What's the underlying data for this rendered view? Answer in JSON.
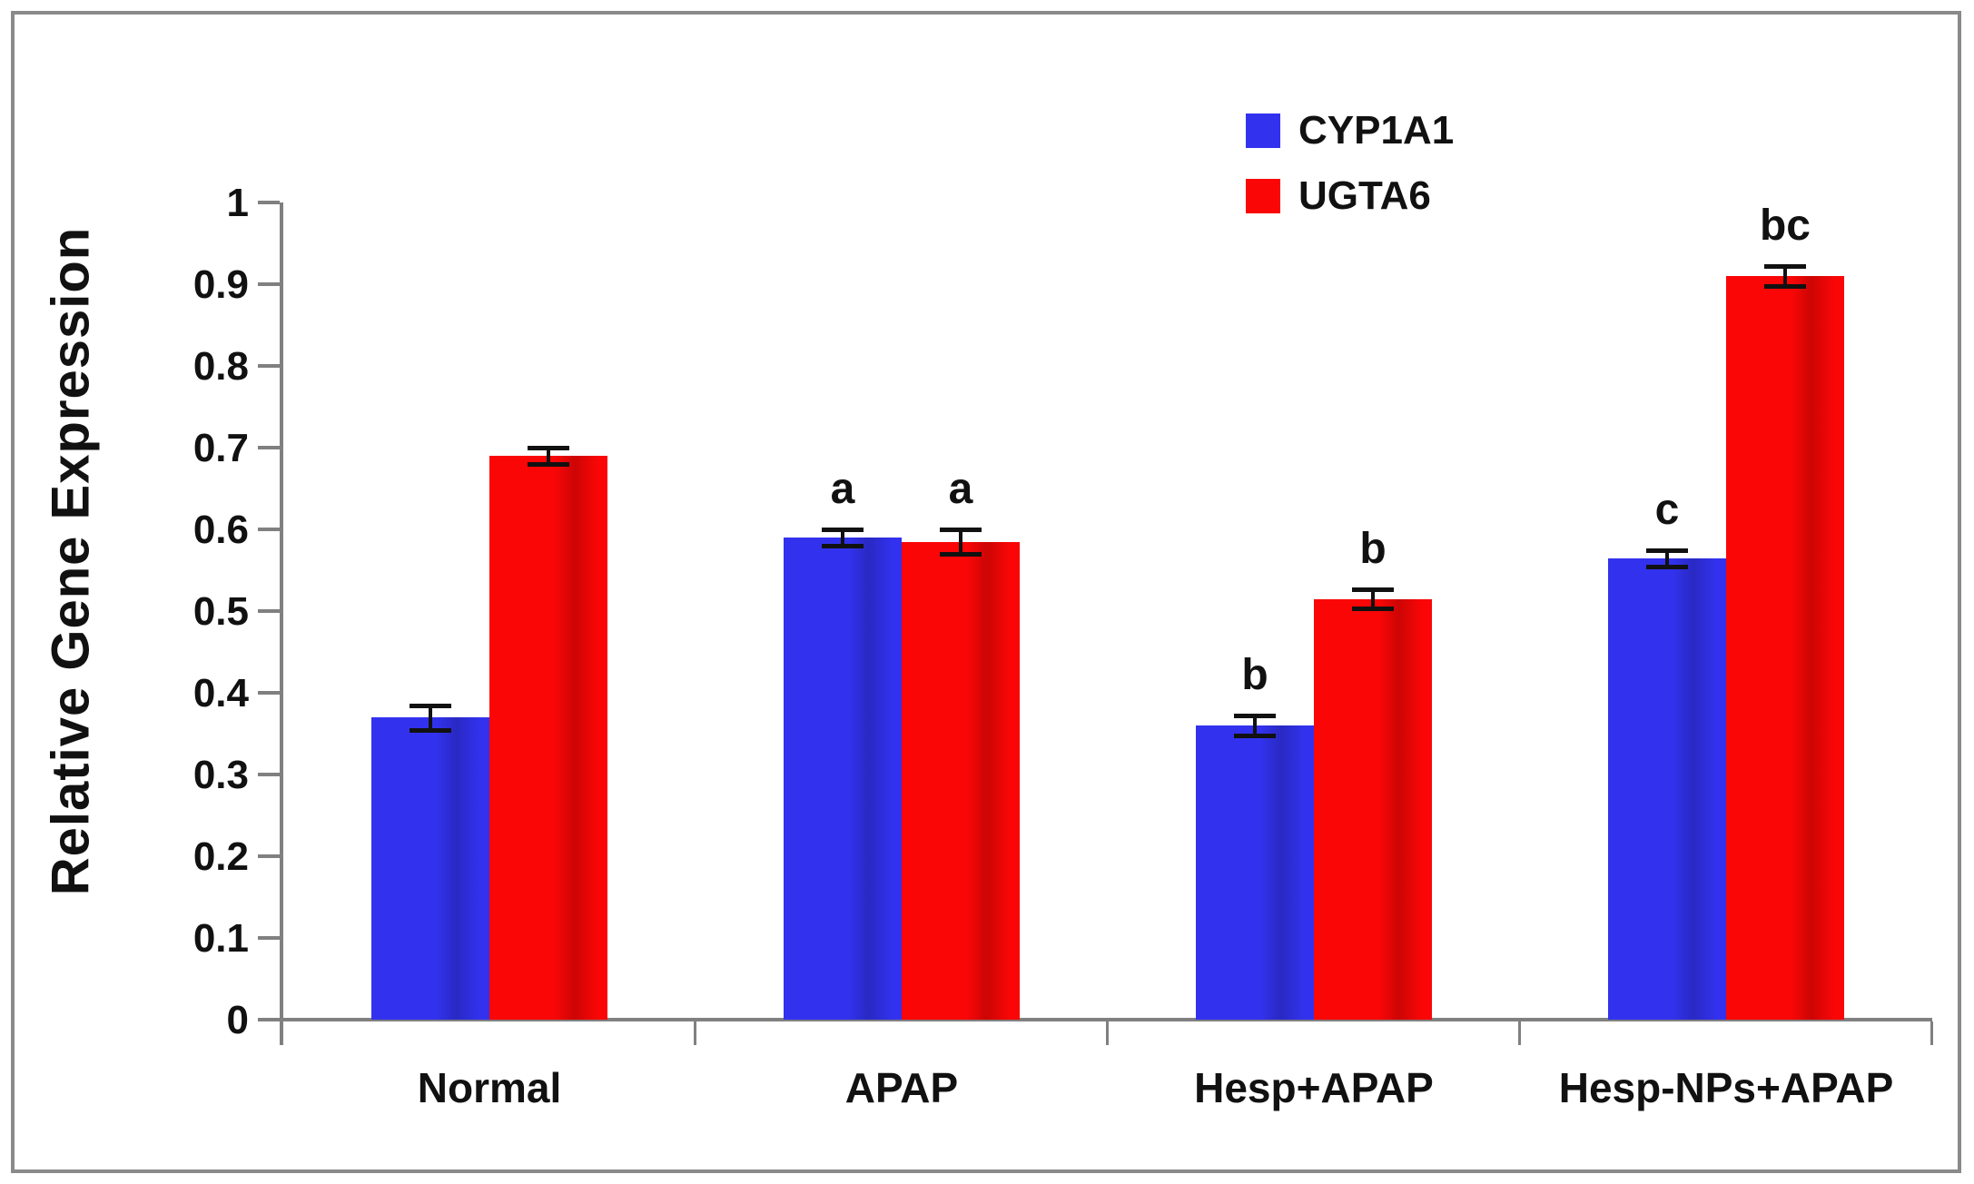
{
  "chart_data": {
    "type": "bar",
    "title": "",
    "xlabel": "",
    "ylabel": "Relative Gene Expression",
    "ylim": [
      0,
      1
    ],
    "ytick_step": 0.1,
    "ytick_labels": [
      "0",
      "0.1",
      "0.2",
      "0.3",
      "0.4",
      "0.5",
      "0.6",
      "0.7",
      "0.8",
      "0.9",
      "1"
    ],
    "categories": [
      "Normal",
      "APAP",
      "Hesp+APAP",
      "Hesp-NPs+APAP"
    ],
    "series": [
      {
        "name": "CYP1A1",
        "color": "#3232ee",
        "values": [
          0.37,
          0.59,
          0.36,
          0.565
        ],
        "errors": [
          0.015,
          0.01,
          0.012,
          0.01
        ],
        "sig_labels": [
          "",
          "a",
          "b",
          "c"
        ]
      },
      {
        "name": "UGTA6",
        "color": "#fa0606",
        "values": [
          0.69,
          0.585,
          0.515,
          0.91
        ],
        "errors": [
          0.01,
          0.015,
          0.012,
          0.012
        ],
        "sig_labels": [
          "",
          "a",
          "b",
          "bc"
        ]
      }
    ],
    "legend_position": "top-right",
    "grid": false,
    "error_bars": true
  },
  "colors": {
    "axis": "#808080",
    "frame_border": "#8a8a8a",
    "text": "#111111",
    "background": "#ffffff"
  }
}
